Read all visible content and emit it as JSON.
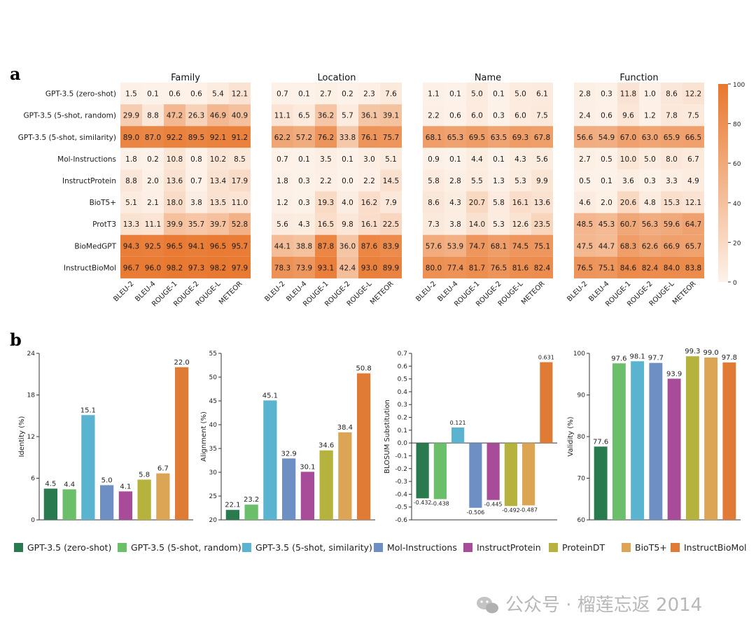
{
  "panel_a_letter": "a",
  "panel_b_letter": "b",
  "watermark": "公众号 · 榴莲忘返 2014",
  "colors": {
    "heat_low": "#fdf2e9",
    "heat_high": "#e8772e",
    "models": [
      "#2a7a4f",
      "#6bbf6a",
      "#5ab4cf",
      "#6d8fc4",
      "#a84c9a",
      "#b5b23d",
      "#dca555",
      "#e07b35"
    ]
  },
  "chart_data": [
    {
      "type": "heatmap",
      "rows": [
        "GPT-3.5 (zero-shot)",
        "GPT-3.5 (5-shot, random)",
        "GPT-3.5 (5-shot, similarity)",
        "Mol-Instructions",
        "InstructProtein",
        "BioT5+",
        "ProtT3",
        "BioMedGPT",
        "InstructBioMol"
      ],
      "columns": [
        "BLEU-2",
        "BLEU-4",
        "ROUGE-1",
        "ROUGE-2",
        "ROUGE-L",
        "METEOR"
      ],
      "colorbar": {
        "min": 0,
        "max": 100,
        "ticks": [
          "0",
          "20",
          "40",
          "60",
          "80",
          "100"
        ]
      },
      "panels": [
        {
          "title": "Family",
          "values": [
            [
              1.5,
              0.1,
              0.6,
              0.6,
              5.4,
              12.1
            ],
            [
              29.9,
              8.8,
              47.2,
              26.3,
              46.9,
              40.9
            ],
            [
              89.0,
              87.0,
              92.2,
              89.5,
              92.1,
              91.2
            ],
            [
              1.8,
              0.2,
              10.8,
              0.8,
              10.2,
              8.5
            ],
            [
              8.8,
              2.0,
              13.6,
              0.7,
              13.4,
              17.9
            ],
            [
              5.1,
              2.1,
              18.0,
              3.8,
              13.5,
              11.0
            ],
            [
              13.3,
              11.1,
              39.9,
              35.7,
              39.7,
              52.8
            ],
            [
              94.3,
              92.5,
              96.5,
              94.1,
              96.5,
              95.7
            ],
            [
              96.7,
              96.0,
              98.2,
              97.3,
              98.2,
              97.9
            ]
          ]
        },
        {
          "title": "Location",
          "values": [
            [
              0.7,
              0.1,
              2.7,
              0.2,
              2.3,
              7.6
            ],
            [
              11.1,
              6.5,
              36.2,
              5.7,
              36.1,
              39.1
            ],
            [
              62.2,
              57.2,
              76.2,
              33.8,
              76.1,
              75.7
            ],
            [
              0.7,
              0.1,
              3.5,
              0.1,
              3.0,
              5.1
            ],
            [
              1.8,
              0.3,
              2.2,
              0.0,
              2.2,
              14.5
            ],
            [
              1.2,
              0.3,
              19.3,
              4.0,
              16.2,
              7.9
            ],
            [
              5.6,
              4.3,
              16.5,
              9.8,
              16.1,
              22.5
            ],
            [
              44.1,
              38.8,
              87.8,
              36.0,
              87.6,
              83.9
            ],
            [
              78.3,
              73.9,
              93.1,
              42.4,
              93.0,
              89.9
            ]
          ]
        },
        {
          "title": "Name",
          "values": [
            [
              1.1,
              0.1,
              5.0,
              0.1,
              5.0,
              6.1
            ],
            [
              2.2,
              0.6,
              6.0,
              0.3,
              6.0,
              7.5
            ],
            [
              68.1,
              65.3,
              69.5,
              63.5,
              69.3,
              67.8
            ],
            [
              0.9,
              0.1,
              4.4,
              0.1,
              4.3,
              5.6
            ],
            [
              5.8,
              2.8,
              5.5,
              1.3,
              5.3,
              9.9
            ],
            [
              8.6,
              4.3,
              20.7,
              5.8,
              16.1,
              13.6
            ],
            [
              7.3,
              3.8,
              14.0,
              5.3,
              12.6,
              23.5
            ],
            [
              57.6,
              53.9,
              74.7,
              68.1,
              74.5,
              75.1
            ],
            [
              80.0,
              77.4,
              81.7,
              76.5,
              81.6,
              82.4
            ]
          ]
        },
        {
          "title": "Function",
          "values": [
            [
              2.8,
              0.3,
              11.8,
              1.0,
              8.6,
              12.2
            ],
            [
              2.4,
              0.6,
              9.6,
              1.2,
              7.8,
              7.5
            ],
            [
              56.6,
              54.9,
              67.0,
              63.0,
              65.9,
              66.5
            ],
            [
              2.7,
              0.5,
              10.0,
              5.0,
              8.0,
              6.7
            ],
            [
              0.5,
              0.1,
              3.6,
              0.3,
              3.3,
              4.9
            ],
            [
              4.6,
              2.0,
              20.6,
              4.8,
              15.3,
              12.1
            ],
            [
              48.5,
              45.3,
              60.7,
              56.3,
              59.6,
              64.7
            ],
            [
              47.5,
              44.7,
              68.3,
              62.6,
              66.9,
              65.7
            ],
            [
              76.5,
              75.1,
              84.6,
              82.4,
              84.0,
              83.8
            ]
          ]
        }
      ]
    },
    {
      "type": "bar",
      "ylabel": "Identity (%)",
      "ylim": [
        0,
        24
      ],
      "yticks": [
        0,
        6,
        12,
        18,
        24
      ],
      "ytick_labels": [
        "0",
        "6",
        "12",
        "18",
        "24"
      ],
      "values": [
        4.5,
        4.4,
        15.1,
        5.0,
        4.1,
        5.8,
        6.7,
        22.0
      ],
      "labels": [
        "4.5",
        "4.4",
        "15.1",
        "5.0",
        "4.1",
        "5.8",
        "6.7",
        "22.0"
      ]
    },
    {
      "type": "bar",
      "ylabel": "Alignment (%)",
      "ylim": [
        20,
        55
      ],
      "yticks": [
        20,
        25,
        30,
        35,
        40,
        45,
        50,
        55
      ],
      "ytick_labels": [
        "20",
        "25",
        "30",
        "35",
        "40",
        "45",
        "50",
        "55"
      ],
      "values": [
        22.1,
        23.2,
        45.1,
        32.9,
        30.1,
        34.6,
        38.4,
        50.8
      ],
      "labels": [
        "22.1",
        "23.2",
        "45.1",
        "32.9",
        "30.1",
        "34.6",
        "38.4",
        "50.8"
      ]
    },
    {
      "type": "bar",
      "ylabel": "BLOSUM Substitution",
      "ylim": [
        -0.6,
        0.7
      ],
      "yticks": [
        -0.6,
        -0.5,
        -0.4,
        -0.3,
        -0.2,
        -0.1,
        0.0,
        0.1,
        0.2,
        0.3,
        0.4,
        0.5,
        0.6,
        0.7
      ],
      "ytick_labels": [
        "-0.6",
        "-0.5",
        "-0.4",
        "-0.3",
        "-0.2",
        "-0.1",
        "0.0",
        "0.1",
        "0.2",
        "0.3",
        "0.4",
        "0.5",
        "0.6",
        "0.7"
      ],
      "values": [
        -0.432,
        -0.438,
        0.121,
        -0.506,
        -0.445,
        -0.492,
        -0.487,
        0.631
      ],
      "labels": [
        "-0.432",
        "-0.438",
        "0.121",
        "-0.506",
        "-0.445",
        "-0.492",
        "-0.487",
        "0.631"
      ]
    },
    {
      "type": "bar",
      "ylabel": "Validity (%)",
      "ylim": [
        60,
        100
      ],
      "yticks": [
        60,
        70,
        80,
        90,
        100
      ],
      "ytick_labels": [
        "60",
        "70",
        "80",
        "90",
        "100"
      ],
      "values": [
        77.6,
        97.6,
        98.1,
        97.7,
        93.9,
        99.3,
        99.0,
        97.8
      ],
      "labels": [
        "77.6",
        "97.6",
        "98.1",
        "97.7",
        "93.9",
        "99.3",
        "99.0",
        "97.8"
      ]
    }
  ],
  "legend": [
    "GPT-3.5 (zero-shot)",
    "GPT-3.5 (5-shot, random)",
    "GPT-3.5 (5-shot, similarity)",
    "Mol-Instructions",
    "InstructProtein",
    "ProteinDT",
    "BioT5+",
    "InstructBioMol"
  ]
}
